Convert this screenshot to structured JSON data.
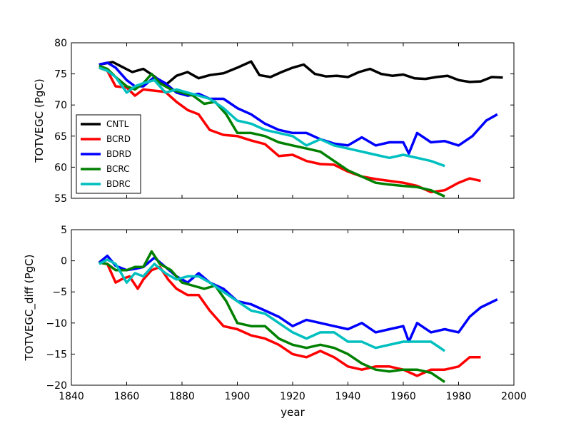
{
  "chart_data": [
    {
      "type": "line",
      "panel": "top",
      "ylabel": "TOTVEGC (PgC)",
      "xlabel": "",
      "xlim": [
        1840,
        2000
      ],
      "ylim": [
        55,
        80
      ],
      "yticks": [
        "55",
        "60",
        "65",
        "70",
        "75",
        "80"
      ],
      "legend": "lower-left",
      "series": [
        {
          "name": "CNTL",
          "color": "#000000",
          "x": [
            1850,
            1855,
            1858,
            1862,
            1866,
            1870,
            1874,
            1878,
            1882,
            1886,
            1890,
            1895,
            1900,
            1905,
            1908,
            1912,
            1916,
            1920,
            1924,
            1928,
            1932,
            1936,
            1940,
            1944,
            1948,
            1952,
            1956,
            1960,
            1964,
            1968,
            1972,
            1976,
            1980,
            1984,
            1988,
            1992,
            1996
          ],
          "values": [
            76.5,
            76.9,
            76.2,
            75.3,
            75.8,
            74.6,
            73.2,
            74.7,
            75.3,
            74.3,
            74.8,
            75.1,
            76.0,
            77.0,
            74.8,
            74.5,
            75.3,
            76.0,
            76.5,
            75.0,
            74.6,
            74.7,
            74.5,
            75.3,
            75.8,
            75.0,
            74.7,
            74.9,
            74.3,
            74.2,
            74.5,
            74.7,
            74.0,
            73.7,
            73.8,
            74.5,
            74.4
          ]
        },
        {
          "name": "BCRD",
          "color": "#ff0000",
          "x": [
            1850,
            1853,
            1856,
            1860,
            1863,
            1866,
            1870,
            1874,
            1878,
            1882,
            1886,
            1890,
            1895,
            1900,
            1905,
            1910,
            1915,
            1920,
            1925,
            1930,
            1935,
            1940,
            1945,
            1950,
            1955,
            1960,
            1965,
            1970,
            1975,
            1980,
            1984,
            1988
          ],
          "values": [
            76.0,
            75.5,
            73.0,
            72.8,
            71.5,
            72.5,
            72.3,
            72.1,
            70.5,
            69.2,
            68.5,
            66.0,
            65.2,
            65.0,
            64.3,
            63.7,
            61.8,
            62.0,
            61.0,
            60.5,
            60.4,
            59.3,
            58.5,
            58.1,
            57.8,
            57.5,
            57.0,
            56.0,
            56.3,
            57.5,
            58.2,
            57.8
          ]
        },
        {
          "name": "BDRD",
          "color": "#0000ff",
          "x": [
            1850,
            1853,
            1856,
            1860,
            1863,
            1866,
            1870,
            1874,
            1878,
            1882,
            1886,
            1890,
            1895,
            1900,
            1905,
            1910,
            1915,
            1920,
            1925,
            1930,
            1935,
            1940,
            1945,
            1950,
            1955,
            1960,
            1962,
            1965,
            1970,
            1975,
            1980,
            1985,
            1990,
            1994
          ],
          "values": [
            76.5,
            76.8,
            76.0,
            74.0,
            73.0,
            73.0,
            74.5,
            73.5,
            72.0,
            71.5,
            71.8,
            71.0,
            71.0,
            69.5,
            68.5,
            67.0,
            66.0,
            65.5,
            65.5,
            64.5,
            63.8,
            63.5,
            64.8,
            63.5,
            64.0,
            64.0,
            62.2,
            65.5,
            64.0,
            64.2,
            63.5,
            65.0,
            67.5,
            68.5
          ]
        },
        {
          "name": "BCRC",
          "color": "#008000",
          "x": [
            1850,
            1853,
            1856,
            1860,
            1863,
            1866,
            1869,
            1872,
            1876,
            1880,
            1884,
            1888,
            1892,
            1896,
            1900,
            1905,
            1910,
            1915,
            1920,
            1925,
            1930,
            1935,
            1940,
            1945,
            1950,
            1955,
            1960,
            1965,
            1970,
            1975
          ],
          "values": [
            76.3,
            75.8,
            74.5,
            73.0,
            72.5,
            73.5,
            75.0,
            73.5,
            72.5,
            72.0,
            71.5,
            70.2,
            70.5,
            68.5,
            65.5,
            65.5,
            65.0,
            64.0,
            63.5,
            63.0,
            62.5,
            61.0,
            59.5,
            58.5,
            57.5,
            57.2,
            57.0,
            56.8,
            56.3,
            55.3
          ]
        },
        {
          "name": "BDRC",
          "color": "#00bfbf",
          "x": [
            1850,
            1853,
            1856,
            1860,
            1863,
            1866,
            1870,
            1874,
            1878,
            1882,
            1886,
            1890,
            1895,
            1900,
            1905,
            1910,
            1915,
            1920,
            1925,
            1930,
            1935,
            1940,
            1945,
            1950,
            1955,
            1960,
            1965,
            1970,
            1975
          ],
          "values": [
            76.0,
            75.5,
            74.5,
            72.0,
            73.0,
            73.5,
            74.0,
            72.0,
            72.5,
            72.0,
            71.5,
            71.0,
            69.5,
            67.5,
            67.0,
            66.0,
            65.5,
            65.0,
            63.5,
            64.5,
            63.5,
            63.0,
            62.5,
            62.0,
            61.5,
            62.0,
            61.5,
            61.0,
            60.2
          ]
        }
      ]
    },
    {
      "type": "line",
      "panel": "bottom",
      "ylabel": "TOTVEGC_diff (PgC)",
      "xlabel": "year",
      "xlim": [
        1840,
        2000
      ],
      "ylim": [
        -20,
        5
      ],
      "yticks": [
        "−20",
        "−15",
        "−10",
        "−5",
        "0",
        "5"
      ],
      "xticks": [
        "1840",
        "1860",
        "1880",
        "1900",
        "1920",
        "1940",
        "1960",
        "1980",
        "2000"
      ],
      "series": [
        {
          "name": "BCRD",
          "color": "#ff0000",
          "x": [
            1850,
            1853,
            1856,
            1858,
            1861,
            1864,
            1866,
            1869,
            1872,
            1875,
            1878,
            1882,
            1886,
            1890,
            1895,
            1900,
            1905,
            1910,
            1915,
            1920,
            1925,
            1930,
            1935,
            1940,
            1945,
            1950,
            1955,
            1960,
            1965,
            1970,
            1975,
            1980,
            1984,
            1988
          ],
          "values": [
            -0.3,
            -0.5,
            -3.5,
            -3.0,
            -2.5,
            -4.5,
            -3.0,
            -1.5,
            -1.0,
            -3.0,
            -4.5,
            -5.5,
            -5.5,
            -8.0,
            -10.5,
            -11.0,
            -12.0,
            -12.5,
            -13.5,
            -15.0,
            -15.5,
            -14.5,
            -15.5,
            -17.0,
            -17.5,
            -17.0,
            -17.0,
            -17.5,
            -18.5,
            -17.5,
            -17.5,
            -17.0,
            -15.5,
            -15.5
          ]
        },
        {
          "name": "BDRD",
          "color": "#0000ff",
          "x": [
            1850,
            1853,
            1856,
            1860,
            1863,
            1866,
            1870,
            1874,
            1878,
            1882,
            1886,
            1890,
            1895,
            1900,
            1905,
            1910,
            1915,
            1920,
            1925,
            1930,
            1935,
            1940,
            1945,
            1950,
            1955,
            1960,
            1962,
            1965,
            1970,
            1975,
            1980,
            1984,
            1988,
            1994
          ],
          "values": [
            -0.3,
            0.8,
            -0.8,
            -1.5,
            -1.3,
            -1.0,
            0.5,
            -1.0,
            -2.5,
            -3.5,
            -2.0,
            -3.5,
            -4.5,
            -6.5,
            -7.0,
            -8.0,
            -9.0,
            -10.5,
            -9.5,
            -10.0,
            -10.5,
            -11.0,
            -10.0,
            -11.5,
            -11.0,
            -10.5,
            -13.0,
            -10.0,
            -11.5,
            -11.0,
            -11.5,
            -9.0,
            -7.5,
            -6.2
          ]
        },
        {
          "name": "BCRC",
          "color": "#008000",
          "x": [
            1850,
            1853,
            1856,
            1860,
            1863,
            1866,
            1869,
            1872,
            1876,
            1880,
            1884,
            1888,
            1892,
            1896,
            1900,
            1905,
            1910,
            1915,
            1920,
            1925,
            1930,
            1935,
            1940,
            1945,
            1950,
            1955,
            1960,
            1965,
            1970,
            1975
          ],
          "values": [
            -0.3,
            -0.5,
            -1.5,
            -1.5,
            -1.0,
            -1.0,
            1.5,
            -0.5,
            -1.5,
            -3.5,
            -4.0,
            -4.5,
            -4.0,
            -6.5,
            -10.0,
            -10.5,
            -10.5,
            -12.5,
            -13.5,
            -14.0,
            -13.5,
            -14.0,
            -15.0,
            -16.5,
            -17.5,
            -17.8,
            -17.5,
            -17.5,
            -18.0,
            -19.5
          ]
        },
        {
          "name": "BDRC",
          "color": "#00bfbf",
          "x": [
            1850,
            1853,
            1856,
            1860,
            1863,
            1866,
            1870,
            1874,
            1878,
            1882,
            1886,
            1890,
            1895,
            1900,
            1905,
            1910,
            1915,
            1920,
            1925,
            1930,
            1935,
            1940,
            1945,
            1950,
            1955,
            1960,
            1965,
            1970,
            1975
          ],
          "values": [
            -0.5,
            0.2,
            -0.5,
            -3.5,
            -2.0,
            -2.5,
            -0.5,
            -2.0,
            -3.0,
            -2.5,
            -2.5,
            -3.5,
            -5.0,
            -6.5,
            -8.0,
            -8.5,
            -10.0,
            -11.5,
            -12.5,
            -11.5,
            -11.5,
            -13.0,
            -13.0,
            -14.0,
            -13.5,
            -13.0,
            -13.0,
            -13.0,
            -14.5
          ]
        }
      ]
    }
  ]
}
